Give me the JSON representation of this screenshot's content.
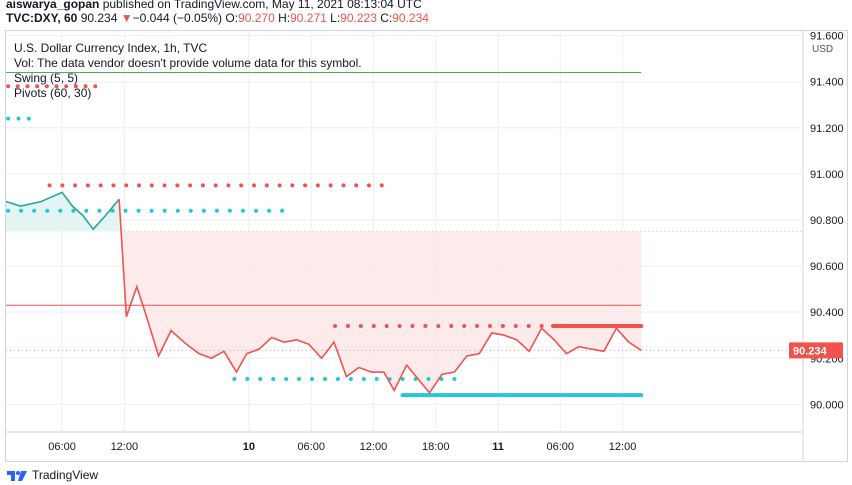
{
  "header": {
    "publisher_name": "aiswarya_gopan",
    "published_text": " published on TradingView.com, May 11, 2021 08:13:04 UTC",
    "symbol": "TVC:DXY, 60",
    "last_price": "90.234",
    "change_arrow": "▼",
    "change": "−0.044 (−0.05%)",
    "o_label": "O:",
    "o_value": "90.270",
    "h_label": "H:",
    "h_value": "90.271",
    "l_label": "L:",
    "l_value": "90.223",
    "c_label": "C:",
    "c_value": "90.234"
  },
  "legend": {
    "title": "U.S. Dollar Currency Index, 1h, TVC",
    "volume_note": "Vol: The data vendor doesn't provide volume data for this symbol.",
    "swing": "Swing (5, 5)",
    "pivots": "Pivots (60, 30)"
  },
  "footer": {
    "brand": "TradingView"
  },
  "colors": {
    "up": "#26a69a",
    "down": "#ef5350",
    "teal_dots": "#26c6da",
    "green_line": "#4caf50",
    "shade": "#fde8e8",
    "grid": "#ebeef3"
  },
  "chart_data": {
    "type": "line",
    "currency": "USD",
    "ylim": [
      89.88,
      91.64
    ],
    "y_ticks": [
      "91.600",
      "91.400",
      "91.200",
      "91.000",
      "90.800",
      "90.600",
      "90.400",
      "90.200",
      "90.000"
    ],
    "x_ticks": [
      {
        "label": "06:00",
        "t": 6
      },
      {
        "label": "12:00",
        "t": 12
      },
      {
        "label": "10",
        "t": 24,
        "bold": true
      },
      {
        "label": "06:00",
        "t": 30
      },
      {
        "label": "12:00",
        "t": 36
      },
      {
        "label": "18:00",
        "t": 42
      },
      {
        "label": "11",
        "t": 48,
        "bold": true
      },
      {
        "label": "06:00",
        "t": 54
      },
      {
        "label": "12:00",
        "t": 60
      }
    ],
    "xlim": [
      0.6,
      65
    ],
    "last_price_label": "90.234",
    "series": [
      {
        "values": [
          [
            0.6,
            90.88
          ],
          [
            2,
            90.86
          ],
          [
            4,
            90.88
          ],
          [
            6,
            90.92
          ],
          [
            7,
            90.86
          ],
          [
            8,
            90.82
          ],
          [
            9,
            90.76
          ],
          [
            10.2,
            90.82
          ],
          [
            11.5,
            90.89
          ],
          [
            12.2,
            90.38
          ],
          [
            13.2,
            90.51
          ],
          [
            14,
            90.4
          ],
          [
            15.3,
            90.21
          ],
          [
            16.5,
            90.32
          ],
          [
            18,
            90.26
          ],
          [
            19.2,
            90.22
          ],
          [
            20.4,
            90.2
          ],
          [
            21.6,
            90.23
          ],
          [
            22.8,
            90.14
          ],
          [
            23.8,
            90.22
          ],
          [
            25,
            90.24
          ],
          [
            26.2,
            90.29
          ],
          [
            27.4,
            90.27
          ],
          [
            28.6,
            90.28
          ],
          [
            29.8,
            90.26
          ],
          [
            31,
            90.2
          ],
          [
            32.2,
            90.27
          ],
          [
            33.4,
            90.12
          ],
          [
            34.6,
            90.16
          ],
          [
            35.8,
            90.14
          ],
          [
            37,
            90.14
          ],
          [
            38,
            90.06
          ],
          [
            39.2,
            90.17
          ],
          [
            40.3,
            90.11
          ],
          [
            41.4,
            90.05
          ],
          [
            42.6,
            90.13
          ],
          [
            43.8,
            90.14
          ],
          [
            45,
            90.21
          ],
          [
            46.2,
            90.22
          ],
          [
            47.4,
            90.31
          ],
          [
            48.6,
            90.3
          ],
          [
            49.8,
            90.28
          ],
          [
            51,
            90.23
          ],
          [
            52.2,
            90.33
          ],
          [
            53.4,
            90.28
          ],
          [
            54.6,
            90.22
          ],
          [
            55.8,
            90.25
          ],
          [
            57,
            90.24
          ],
          [
            58.2,
            90.23
          ],
          [
            59.4,
            90.33
          ],
          [
            60.6,
            90.27
          ],
          [
            61.8,
            90.234
          ]
        ]
      }
    ],
    "levels": {
      "green_line": {
        "y": 91.44,
        "x": [
          0.6,
          61.8
        ]
      },
      "pivot_line": {
        "y": 90.43,
        "x": [
          0.6,
          61.8
        ]
      },
      "shade_top": 90.75,
      "shade_start": 12
    },
    "dot_rows": [
      {
        "color": "red",
        "y": 91.38,
        "x_start": 0.8,
        "x_end": 9.2,
        "n": 10
      },
      {
        "color": "teal",
        "y": 91.24,
        "x_start": 0.8,
        "x_end": 2.8,
        "n": 3
      },
      {
        "color": "red",
        "y": 90.95,
        "x_start": 4.8,
        "x_end": 36.8,
        "n": 27
      },
      {
        "color": "teal",
        "y": 90.84,
        "x_start": 0.8,
        "x_end": 27.2,
        "n": 22
      },
      {
        "color": "red",
        "y": 90.34,
        "x_start": 32.3,
        "x_end": 52.2,
        "n": 17
      },
      {
        "color": "teal",
        "y": 90.11,
        "x_start": 22.6,
        "x_end": 43.8,
        "n": 18
      },
      {
        "color": "teal_thick",
        "y": 90.04,
        "x_start": 38.8,
        "x_end": 61.8,
        "n": 1
      },
      {
        "color": "red_thick",
        "y": 90.34,
        "x_start": 53.3,
        "x_end": 61.8,
        "n": 1
      }
    ]
  }
}
